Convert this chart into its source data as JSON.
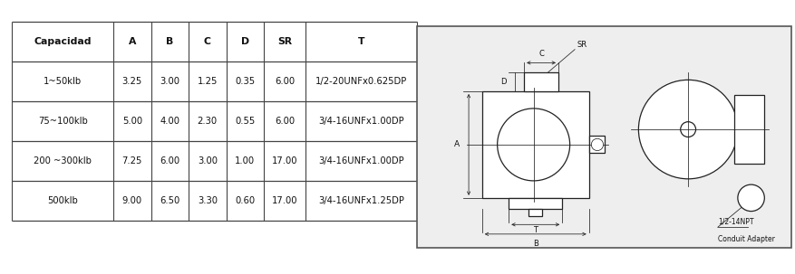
{
  "table_headers": [
    "Capacidad",
    "A",
    "B",
    "C",
    "D",
    "SR",
    "T"
  ],
  "table_rows": [
    [
      "1~50klb",
      "3.25",
      "3.00",
      "1.25",
      "0.35",
      "6.00",
      "1/2-20UNFx0.625DP"
    ],
    [
      "75~100klb",
      "5.00",
      "4.00",
      "2.30",
      "0.55",
      "6.00",
      "3/4-16UNFx1.00DP"
    ],
    [
      "200 ~300klb",
      "7.25",
      "6.00",
      "3.00",
      "1.00",
      "17.00",
      "3/4-16UNFx1.00DP"
    ],
    [
      "500klb",
      "9.00",
      "6.50",
      "3.30",
      "0.60",
      "17.00",
      "3/4-16UNFx1.25DP"
    ]
  ],
  "bg_color": "#ffffff",
  "line_color": "#444444",
  "text_color": "#111111"
}
